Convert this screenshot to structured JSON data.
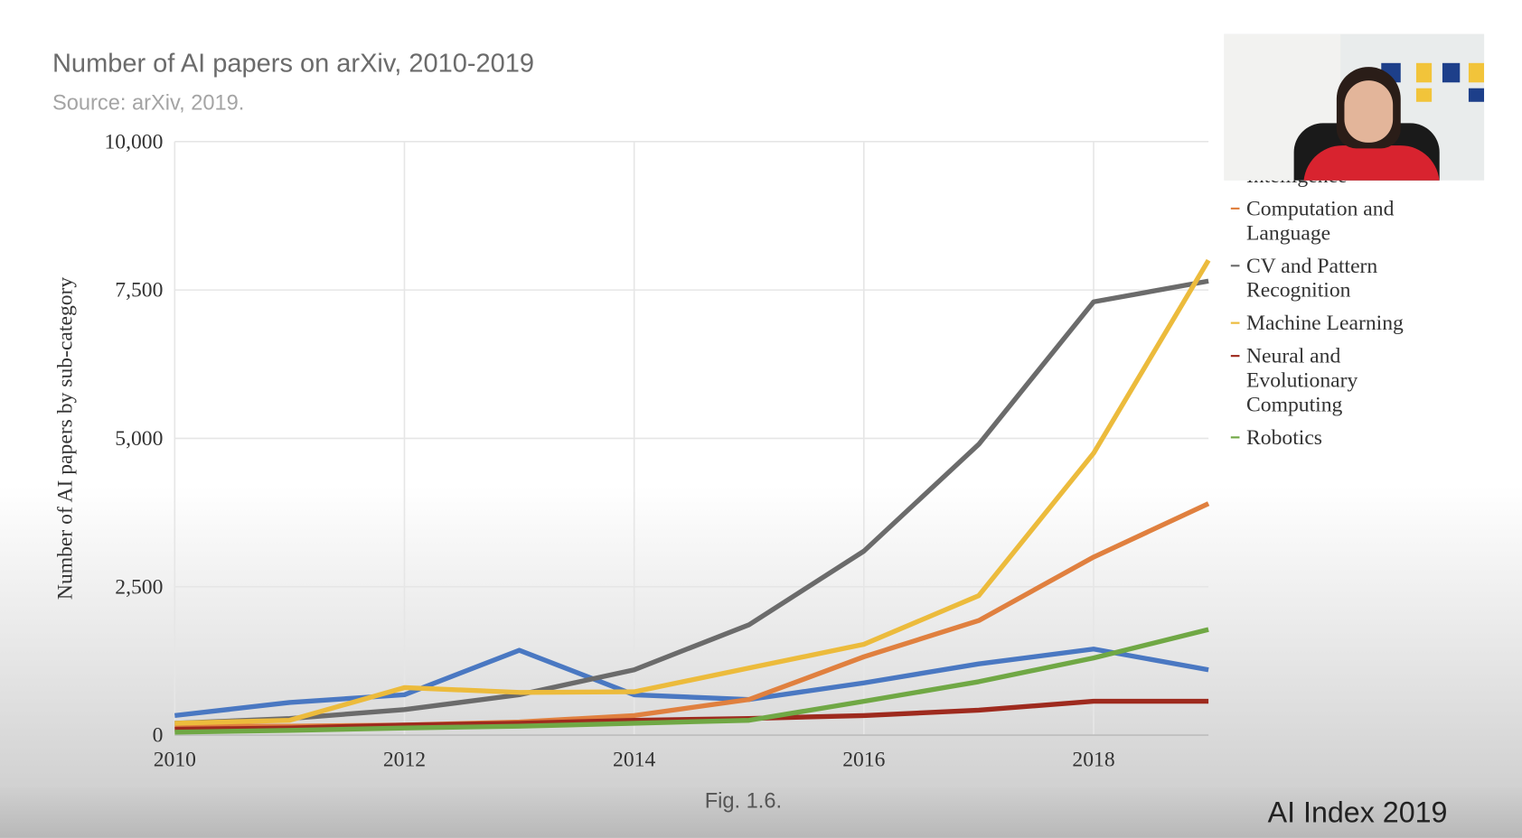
{
  "chart_data": {
    "type": "line",
    "title": "Number of AI papers on arXiv, 2010-2019",
    "subtitle": "Source: arXiv, 2019.",
    "y_label": "Number of AI papers by sub-category",
    "x": [
      2010,
      2011,
      2012,
      2013,
      2014,
      2015,
      2016,
      2017,
      2018,
      2019
    ],
    "xlim": [
      2010,
      2019
    ],
    "xticks": [
      2010,
      2012,
      2014,
      2016,
      2018
    ],
    "ylim": [
      0,
      10000
    ],
    "yticks": [
      0,
      {
        "value": 2500,
        "label": "2,500"
      },
      {
        "value": 5000,
        "label": "5,000"
      },
      {
        "value": 7500,
        "label": "7,500"
      },
      {
        "value": 10000,
        "label": "10,000"
      }
    ],
    "grid": true,
    "series": [
      {
        "name": "Intelligence",
        "color": "#4a78c2",
        "values": [
          330,
          550,
          680,
          1430,
          680,
          600,
          880,
          1200,
          1450,
          1100
        ]
      },
      {
        "name": "Computation and Language",
        "color": "#e0803f",
        "values": [
          150,
          150,
          170,
          220,
          330,
          600,
          1320,
          1930,
          3000,
          3900
        ]
      },
      {
        "name": "CV and Pattern Recognition",
        "color": "#6b6b6b",
        "values": [
          200,
          280,
          430,
          680,
          1100,
          1860,
          3100,
          4900,
          7300,
          7650
        ]
      },
      {
        "name": "Machine Learning",
        "color": "#ecbb3c",
        "values": [
          200,
          250,
          800,
          720,
          730,
          1130,
          1530,
          2350,
          4750,
          8000
        ]
      },
      {
        "name": "Neural and Evolutionary Computing",
        "color": "#9e2a1e",
        "values": [
          100,
          120,
          170,
          200,
          250,
          280,
          330,
          420,
          570,
          570
        ]
      },
      {
        "name": "Robotics",
        "color": "#70a845",
        "values": [
          50,
          80,
          120,
          150,
          200,
          250,
          570,
          900,
          1300,
          1780
        ]
      }
    ]
  },
  "caption": "Fig. 1.6.",
  "brand": "AI Index 2019"
}
